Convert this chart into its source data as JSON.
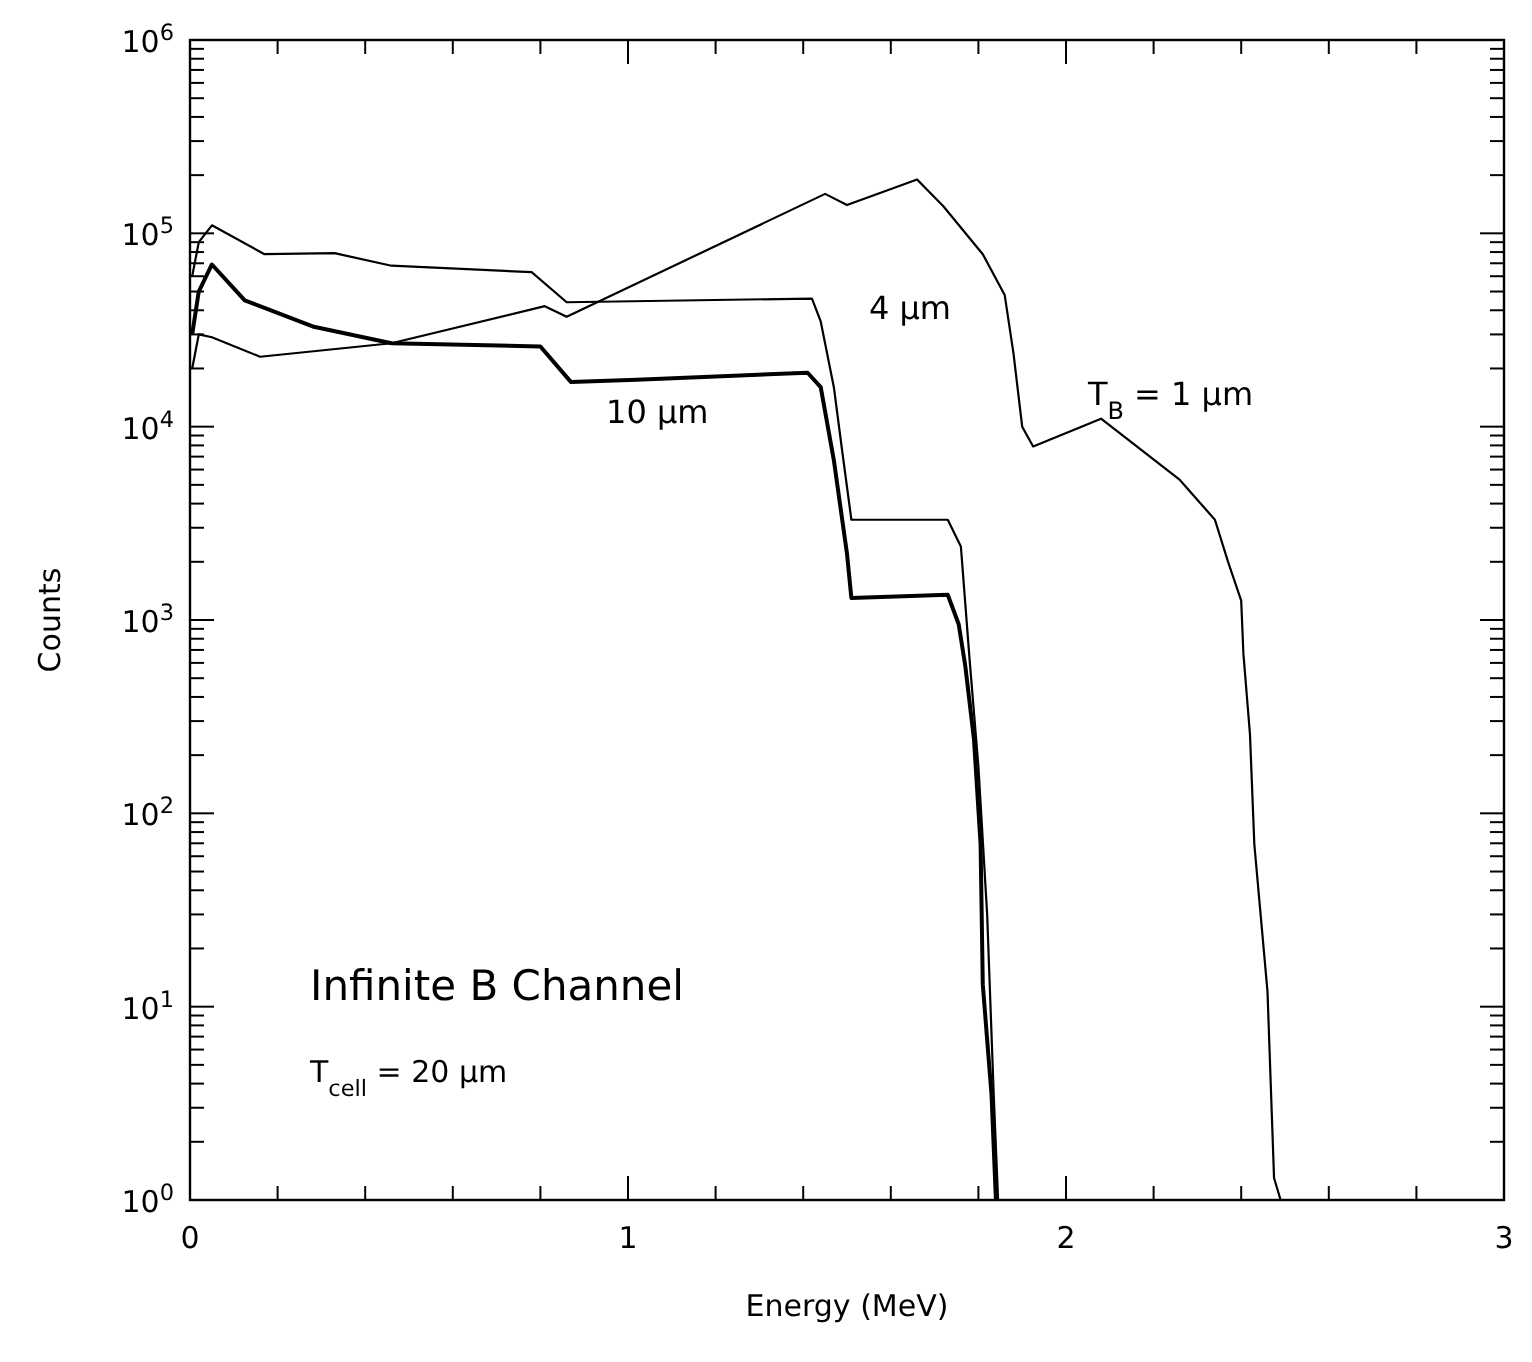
{
  "chart_data": {
    "type": "line",
    "xlabel": "Energy (MeV)",
    "ylabel": "Counts",
    "log": "y",
    "grid": false,
    "line_style": "solid",
    "xlim": [
      0,
      3
    ],
    "ylim": [
      1,
      1000000
    ],
    "xticks": [
      0,
      {
        "value": 0.2,
        "label": null
      },
      {
        "value": 0.4,
        "label": null
      },
      {
        "value": 0.6,
        "label": null
      },
      {
        "value": 0.8,
        "label": null
      },
      1,
      {
        "value": 1.2,
        "label": null
      },
      {
        "value": 1.4,
        "label": null
      },
      {
        "value": 1.6,
        "label": null
      },
      {
        "value": 1.8,
        "label": null
      },
      2,
      {
        "value": 2.2,
        "label": null
      },
      {
        "value": 2.4,
        "label": null
      },
      {
        "value": 2.6,
        "label": null
      },
      {
        "value": 2.8,
        "label": null
      },
      3
    ],
    "yticks": [
      {
        "value": 1,
        "label": "10$^{0}$"
      },
      {
        "value": 2,
        "label": null
      },
      {
        "value": 3,
        "label": null
      },
      {
        "value": 4,
        "label": null
      },
      {
        "value": 5,
        "label": null
      },
      {
        "value": 6,
        "label": null
      },
      {
        "value": 7,
        "label": null
      },
      {
        "value": 8,
        "label": null
      },
      {
        "value": 9,
        "label": null
      },
      {
        "value": 10,
        "label": "10$^{1}$"
      },
      {
        "value": 20,
        "label": null
      },
      {
        "value": 30,
        "label": null
      },
      {
        "value": 40,
        "label": null
      },
      {
        "value": 50,
        "label": null
      },
      {
        "value": 60,
        "label": null
      },
      {
        "value": 70,
        "label": null
      },
      {
        "value": 80,
        "label": null
      },
      {
        "value": 90,
        "label": null
      },
      {
        "value": 100,
        "label": "10$^{2}$"
      },
      {
        "value": 200,
        "label": null
      },
      {
        "value": 300,
        "label": null
      },
      {
        "value": 400,
        "label": null
      },
      {
        "value": 500,
        "label": null
      },
      {
        "value": 600,
        "label": null
      },
      {
        "value": 700,
        "label": null
      },
      {
        "value": 800,
        "label": null
      },
      {
        "value": 900,
        "label": null
      },
      {
        "value": 1000,
        "label": "10$^{3}$"
      },
      {
        "value": 2000,
        "label": null
      },
      {
        "value": 3000,
        "label": null
      },
      {
        "value": 4000,
        "label": null
      },
      {
        "value": 5000,
        "label": null
      },
      {
        "value": 6000,
        "label": null
      },
      {
        "value": 7000,
        "label": null
      },
      {
        "value": 8000,
        "label": null
      },
      {
        "value": 9000,
        "label": null
      },
      {
        "value": 10000,
        "label": "10$^{4}$"
      },
      {
        "value": 20000,
        "label": null
      },
      {
        "value": 30000,
        "label": null
      },
      {
        "value": 40000,
        "label": null
      },
      {
        "value": 50000,
        "label": null
      },
      {
        "value": 60000,
        "label": null
      },
      {
        "value": 70000,
        "label": null
      },
      {
        "value": 80000,
        "label": null
      },
      {
        "value": 90000,
        "label": null
      },
      {
        "value": 100000,
        "label": "10$^{5}$"
      },
      {
        "value": 200000,
        "label": null
      },
      {
        "value": 300000,
        "label": null
      },
      {
        "value": 400000,
        "label": null
      },
      {
        "value": 500000,
        "label": null
      },
      {
        "value": 600000,
        "label": null
      },
      {
        "value": 700000,
        "label": null
      },
      {
        "value": 800000,
        "label": null
      },
      {
        "value": 900000,
        "label": null
      },
      {
        "value": 1000000,
        "label": "10$^{6}$"
      }
    ],
    "series": [
      {
        "name": "T$_{B}$ = 1 µm",
        "color": "#000000",
        "x": [
          0.005,
          0.02,
          0.05,
          0.16,
          0.46,
          0.81,
          0.86,
          1.45,
          1.5,
          1.66,
          1.72,
          1.81,
          1.86,
          1.88,
          1.9,
          1.925,
          2.08,
          2.26,
          2.34,
          2.37,
          2.4,
          2.405,
          2.42,
          2.43,
          2.46,
          2.475,
          2.49
        ],
        "values": [
          20000,
          30000,
          29000,
          23000,
          27000,
          42000,
          37000,
          160000,
          140000,
          190000,
          138000,
          78000,
          48000,
          24000,
          10000,
          7900,
          11000,
          5300,
          3300,
          2000,
          1260,
          670,
          257,
          69,
          12,
          1.3,
          1
        ]
      },
      {
        "name": "4 µm",
        "color": "#000000",
        "x": [
          0.005,
          0.02,
          0.05,
          0.17,
          0.33,
          0.46,
          0.78,
          0.86,
          1.42,
          1.44,
          1.47,
          1.49,
          1.51,
          1.73,
          1.76,
          1.78,
          1.8,
          1.82,
          1.835,
          1.845
        ],
        "values": [
          60000,
          90000,
          110000,
          78000,
          79000,
          68000,
          63000,
          44000,
          46000,
          35000,
          16000,
          7200,
          3300,
          3300,
          2400,
          620,
          175,
          30,
          3.5,
          1
        ]
      },
      {
        "name": "10 µm",
        "color": "#000000",
        "x": [
          0.005,
          0.02,
          0.05,
          0.125,
          0.28,
          0.46,
          0.8,
          0.87,
          1.02,
          1.41,
          1.44,
          1.47,
          1.5,
          1.51,
          1.73,
          1.755,
          1.77,
          1.79,
          1.805,
          1.81,
          1.83,
          1.84
        ],
        "values": [
          30000,
          50000,
          69000,
          45000,
          33000,
          27000,
          26000,
          17000,
          17500,
          19000,
          16000,
          6700,
          2200,
          1300,
          1350,
          950,
          580,
          240,
          69,
          13,
          3.5,
          1
        ]
      }
    ],
    "annotations": [
      "Infinite B Channel",
      "T$_{cell}$ = 20 µm"
    ]
  }
}
